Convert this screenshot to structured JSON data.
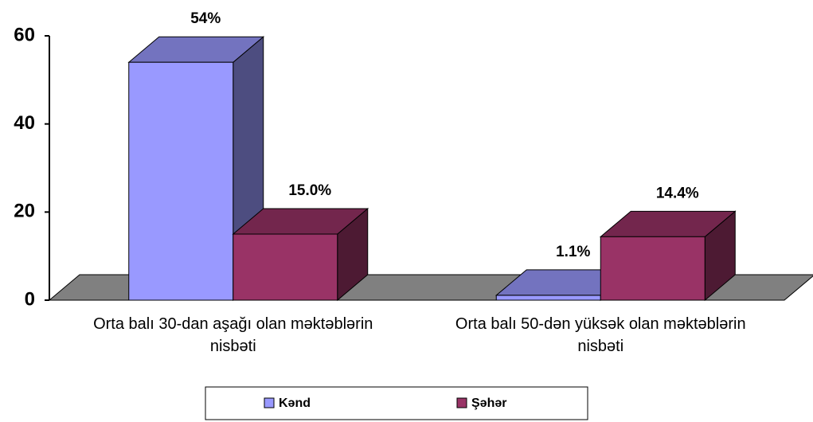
{
  "chart_data": {
    "type": "bar3d",
    "categories": [
      "Orta balı 30-dan aşağı olan məktəblərin nisbəti",
      "Orta balı 50-dən yüksək olan məktəblərin nisbəti"
    ],
    "series": [
      {
        "name": "Kənd",
        "color": "#9999ff",
        "values": [
          54,
          1.1
        ],
        "value_labels": [
          "54%",
          "1.1%"
        ]
      },
      {
        "name": "Şəhər",
        "color": "#993366",
        "values": [
          15,
          14.4
        ],
        "value_labels": [
          "15.0%",
          "14.4%"
        ]
      }
    ],
    "ylim": [
      0,
      60
    ],
    "yticks": [
      0,
      20,
      40,
      60
    ],
    "grid": false,
    "legend": "bottom"
  }
}
